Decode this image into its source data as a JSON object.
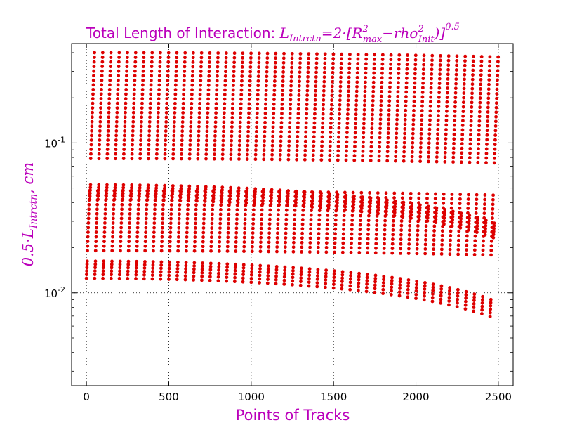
{
  "chart_data": {
    "type": "scatter",
    "title": {
      "prefix": "Total Length of Interaction: ",
      "formula": {
        "L": "L",
        "L_sub": "Intrctn",
        "eq": "=2·[",
        "R": "R",
        "R_sup": "2",
        "R_sub": "max",
        "minus": "−rho",
        "rho_sup": "2",
        "rho_sub": "Init",
        "close": ")]",
        "exp": "0.5"
      }
    },
    "xlabel": "Points of Tracks",
    "ylabel": {
      "coef": "0.5·",
      "L": "L",
      "L_sub": "Intrctn",
      "unit": ", cm"
    },
    "x_ticks": [
      "0",
      "500",
      "1000",
      "1500",
      "2000",
      "2500"
    ],
    "y_ticks": [
      {
        "base": "10",
        "exp": "-1"
      },
      {
        "base": "10",
        "exp": "-2"
      }
    ],
    "xlim": [
      -90,
      2590
    ],
    "ylim": [
      0.0024,
      0.46
    ],
    "yscale": "log",
    "grid": true,
    "colors": {
      "points": "#dd0000",
      "title": "#bb00bb",
      "axis_label": "#bb00bb"
    },
    "structure": {
      "tracks": 50,
      "points_per_track": 50,
      "x_step": 50,
      "rho_init_min": 0.0,
      "rho_init_max": 0.4,
      "r_max_min": 0.0125,
      "r_max_max": 0.4,
      "cluster_near_y": [
        0.0125,
        0.042
      ]
    }
  }
}
